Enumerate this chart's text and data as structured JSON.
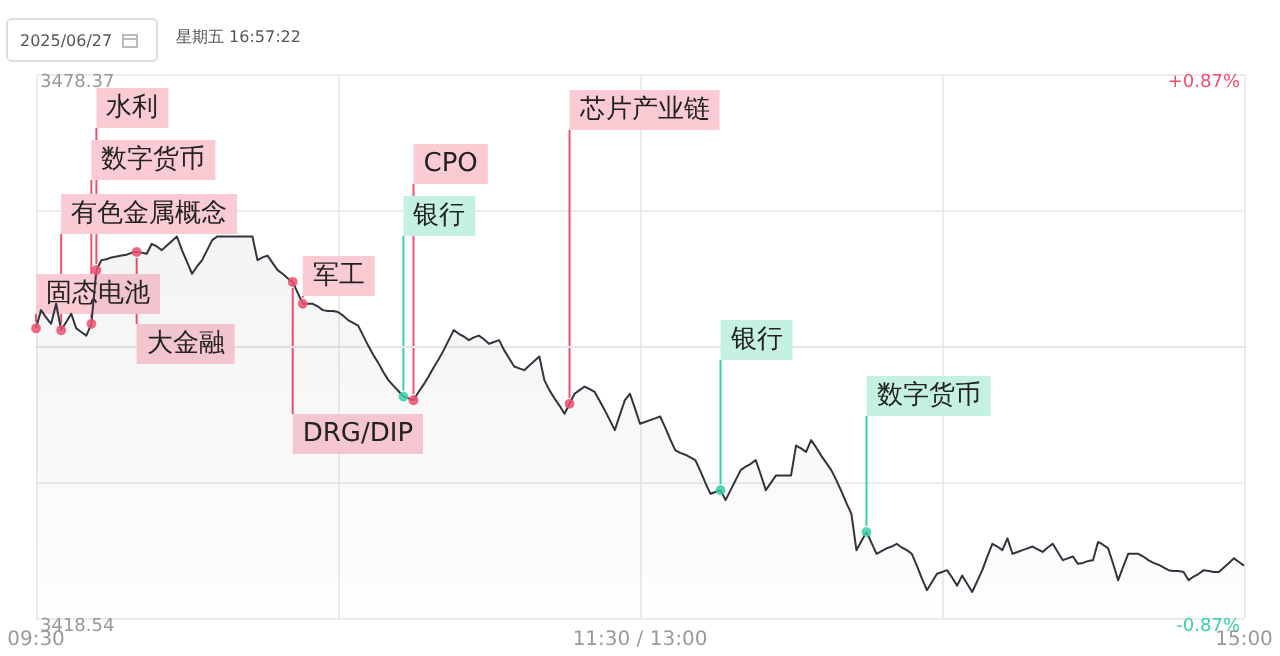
{
  "chart_data": {
    "type": "area",
    "annotations": [
      "2025/06/27",
      "星期五 16:57:22"
    ],
    "categories": [
      "09:30",
      null,
      null,
      null,
      null,
      null,
      null,
      null,
      null,
      null,
      null,
      null,
      null,
      null,
      null,
      null,
      null,
      null,
      null,
      null,
      null,
      null,
      null,
      null,
      null,
      null,
      null,
      null,
      null,
      null,
      null,
      null,
      null,
      null,
      null,
      null,
      null,
      null,
      null,
      null,
      null,
      null,
      null,
      null,
      null,
      null,
      null,
      null,
      null,
      null,
      null,
      null,
      null,
      null,
      null,
      null,
      null,
      null,
      null,
      null,
      null,
      null,
      null,
      null,
      null,
      null,
      null,
      null,
      null,
      null,
      null,
      null,
      null,
      null,
      null,
      null,
      null,
      null,
      null,
      null,
      null,
      null,
      null,
      null,
      null,
      null,
      null,
      null,
      null,
      null,
      null,
      null,
      null,
      null,
      null,
      null,
      null,
      null,
      null,
      null,
      null,
      null,
      null,
      null,
      null,
      null,
      null,
      null,
      null,
      null,
      null,
      null,
      null,
      null,
      null,
      null,
      null,
      null,
      null,
      null,
      "11:30 / 13:00",
      null,
      null,
      null,
      null,
      null,
      null,
      null,
      null,
      null,
      null,
      null,
      null,
      null,
      null,
      null,
      null,
      null,
      null,
      null,
      null,
      null,
      null,
      null,
      null,
      null,
      null,
      null,
      null,
      null,
      null,
      null,
      null,
      null,
      null,
      null,
      null,
      null,
      null,
      null,
      null,
      null,
      null,
      null,
      null,
      null,
      null,
      null,
      null,
      null,
      null,
      null,
      null,
      null,
      null,
      null,
      null,
      null,
      null,
      null,
      null,
      null,
      null,
      null,
      null,
      null,
      null,
      null,
      null,
      null,
      null,
      null,
      null,
      null,
      null,
      null,
      null,
      null,
      null,
      null,
      null,
      null,
      null,
      null,
      null,
      null,
      null,
      null,
      null,
      null,
      null,
      null,
      null,
      null,
      null,
      null,
      null,
      null,
      null,
      null,
      null,
      null,
      null,
      null,
      null,
      null,
      null,
      null,
      null,
      null,
      null,
      null,
      null,
      null,
      null,
      null,
      null,
      null,
      null,
      null,
      "15:00"
    ],
    "ylim": [
      3418.54,
      3478.37
    ],
    "yticks": [
      {
        "value": 3418.54,
        "label": "3418.54"
      },
      {
        "value": 3433.5,
        "label": null
      },
      {
        "value": 3448.455,
        "label": null
      },
      {
        "value": 3463.41,
        "label": null
      },
      {
        "value": 3478.37,
        "label": "3478.37"
      }
    ],
    "y2lim": [
      -0.87,
      0.87
    ],
    "y2ticks": [
      {
        "value": -0.87,
        "label": "-0.87%"
      },
      {
        "value": 0.87,
        "label": "+0.87%"
      }
    ],
    "grid": true,
    "marker": "none",
    "series": [
      {
        "color": "#33333d",
        "values": [
          3450.4,
          3452.4,
          3451.6,
          3450.9,
          3453.1,
          3450.2,
          3451.1,
          3452.0,
          3450.4,
          3450.0,
          3449.6,
          3450.9,
          3456.8,
          3457.9,
          3458.0,
          3458.2,
          3458.3,
          3458.4,
          3458.5,
          3458.7,
          3458.8,
          3458.7,
          3458.6,
          3459.7,
          3459.4,
          3459.0,
          3459.5,
          3460.0,
          3460.5,
          3459.0,
          3457.7,
          3456.4,
          3457.2,
          3457.9,
          3459.0,
          3460.1,
          3460.5,
          3460.5,
          3460.5,
          3460.5,
          3460.5,
          3460.5,
          3460.5,
          3460.5,
          3457.9,
          3458.2,
          3458.4,
          3457.6,
          3456.8,
          3456.4,
          3455.9,
          3455.5,
          3454.3,
          3453.1,
          3453.1,
          3453.1,
          3452.8,
          3452.4,
          3452.3,
          3452.3,
          3452.2,
          3451.8,
          3451.3,
          3451.0,
          3450.7,
          3449.6,
          3448.5,
          3447.5,
          3446.6,
          3445.6,
          3444.7,
          3444.1,
          3443.5,
          3442.9,
          3442.7,
          3442.5,
          3443.4,
          3444.2,
          3445.1,
          3446.1,
          3447.0,
          3448.0,
          3449.1,
          3450.2,
          3449.8,
          3449.5,
          3449.1,
          3449.4,
          3449.6,
          3449.2,
          3448.7,
          3448.9,
          3449.1,
          3448.0,
          3447.1,
          3446.2,
          3446.0,
          3445.8,
          3446.3,
          3446.8,
          3447.3,
          3444.7,
          3443.6,
          3442.7,
          3441.9,
          3441.0,
          3442.1,
          3443.2,
          3443.6,
          3444.0,
          3443.7,
          3443.4,
          3442.4,
          3441.4,
          3440.3,
          3439.2,
          3440.9,
          3442.5,
          3443.2,
          3441.6,
          3439.9,
          3440.1,
          3440.3,
          3440.5,
          3440.7,
          3439.5,
          3438.2,
          3437.0,
          3436.7,
          3436.5,
          3436.2,
          3435.9,
          3434.7,
          3433.4,
          3432.2,
          3432.4,
          3432.6,
          3431.5,
          3432.6,
          3433.7,
          3434.8,
          3435.2,
          3435.5,
          3435.9,
          3434.3,
          3432.6,
          3433.4,
          3434.2,
          3434.2,
          3434.2,
          3434.2,
          3437.5,
          3437.2,
          3436.8,
          3438.1,
          3437.3,
          3436.4,
          3435.6,
          3434.8,
          3433.7,
          3432.5,
          3431.2,
          3430.0,
          3426.0,
          3427.0,
          3428.0,
          3426.8,
          3425.6,
          3425.9,
          3426.2,
          3426.4,
          3426.7,
          3426.3,
          3426.0,
          3425.6,
          3424.3,
          3422.9,
          3421.6,
          3422.5,
          3423.4,
          3423.6,
          3423.8,
          3423.0,
          3422.1,
          3423.2,
          3422.3,
          3421.4,
          3422.6,
          3423.8,
          3425.3,
          3426.7,
          3426.4,
          3426.0,
          3427.3,
          3425.6,
          3425.8,
          3426.0,
          3426.2,
          3426.4,
          3426.1,
          3425.8,
          3426.3,
          3426.7,
          3425.8,
          3424.9,
          3425.1,
          3425.3,
          3424.5,
          3424.6,
          3424.8,
          3424.9,
          3426.9,
          3426.6,
          3426.2,
          3424.5,
          3422.7,
          3424.2,
          3425.6,
          3425.6,
          3425.6,
          3425.3,
          3424.9,
          3424.6,
          3424.4,
          3424.1,
          3423.8,
          3423.7,
          3423.7,
          3423.6,
          3422.7,
          3423.1,
          3423.4,
          3423.8,
          3423.7,
          3423.6,
          3423.6,
          3424.1,
          3424.6,
          3425.1,
          3424.7,
          3424.3
        ]
      },
      {
        "type": "scatter",
        "marker": "circle",
        "color": "#f0506e",
        "values": [
          3450.4,
          null,
          null,
          null,
          null,
          3450.2,
          null,
          null,
          null,
          null,
          null,
          3450.9,
          3456.8,
          null,
          null,
          null,
          null,
          null,
          null,
          null,
          3458.8,
          null,
          null,
          null,
          null,
          null,
          null,
          null,
          null,
          null,
          null,
          null,
          null,
          null,
          null,
          null,
          null,
          null,
          null,
          null,
          null,
          null,
          null,
          null,
          null,
          null,
          null,
          null,
          null,
          null,
          null,
          3455.5,
          null,
          3453.1,
          null,
          null,
          null,
          null,
          null,
          null,
          null,
          null,
          null,
          null,
          null,
          null,
          null,
          null,
          null,
          null,
          null,
          null,
          null,
          null,
          null,
          3442.5,
          null,
          null,
          null,
          null,
          null,
          null,
          null,
          null,
          null,
          null,
          null,
          null,
          null,
          null,
          null,
          null,
          null,
          null,
          null,
          null,
          null,
          null,
          null,
          null,
          null,
          null,
          null,
          null,
          null,
          null,
          3442.1,
          null,
          null,
          null,
          null,
          null,
          null,
          null,
          null,
          null,
          null,
          null,
          null,
          null,
          null,
          null,
          null,
          null,
          null,
          null,
          null,
          null,
          null,
          null,
          null,
          null,
          null,
          null,
          null,
          null,
          null,
          null,
          null,
          null,
          null,
          null,
          null,
          null,
          null,
          null,
          null,
          null,
          null,
          null,
          null,
          null,
          null,
          null,
          null,
          null,
          null,
          null,
          null,
          null,
          null,
          null,
          null,
          null,
          null,
          null,
          null,
          null,
          null,
          null,
          null,
          null,
          null,
          null,
          null,
          null,
          null,
          null,
          null,
          null,
          null,
          null,
          null,
          null,
          null,
          null,
          null,
          null,
          null,
          null,
          null,
          null,
          null,
          null,
          null,
          null,
          null,
          null,
          null,
          null,
          null,
          null,
          null,
          null,
          null,
          null,
          null,
          null,
          null,
          null,
          null,
          null,
          null,
          null,
          null,
          null,
          null,
          null,
          null,
          null,
          null,
          null,
          null,
          null,
          null,
          null,
          null,
          null,
          null,
          null,
          null,
          null,
          null,
          null,
          null,
          null,
          null,
          null,
          null,
          null,
          null
        ],
        "value_labels": [
          "固态电池",
          null,
          null,
          null,
          null,
          "有色金属概念",
          null,
          null,
          null,
          null,
          null,
          "数字货币",
          "水利",
          null,
          null,
          null,
          null,
          null,
          null,
          null,
          "大金融",
          null,
          null,
          null,
          null,
          null,
          null,
          null,
          null,
          null,
          null,
          null,
          null,
          null,
          null,
          null,
          null,
          null,
          null,
          null,
          null,
          null,
          null,
          null,
          null,
          null,
          null,
          null,
          null,
          null,
          null,
          "DRG/DIP",
          null,
          "军工",
          null,
          null,
          null,
          null,
          null,
          null,
          null,
          null,
          null,
          null,
          null,
          null,
          null,
          null,
          null,
          null,
          null,
          null,
          null,
          null,
          null,
          "CPO",
          null,
          null,
          null,
          null,
          null,
          null,
          null,
          null,
          null,
          null,
          null,
          null,
          null,
          null,
          null,
          null,
          null,
          null,
          null,
          null,
          null,
          null,
          null,
          null,
          null,
          null,
          null,
          null,
          null,
          null,
          "芯片产业链",
          null,
          null,
          null,
          null,
          null,
          null,
          null,
          null,
          null,
          null,
          null,
          null,
          null,
          null,
          null,
          null,
          null,
          null,
          null,
          null,
          null,
          null,
          null,
          null,
          null,
          null,
          null,
          null,
          null,
          null,
          null,
          null,
          null,
          null,
          null,
          null,
          null,
          null,
          null,
          null,
          null,
          null,
          null,
          null,
          null,
          null,
          null,
          null,
          null,
          null,
          null,
          null,
          null,
          null,
          null,
          null,
          null,
          null,
          null,
          null,
          null,
          null,
          null,
          null,
          null,
          null,
          null,
          null,
          null,
          null,
          null,
          null,
          null,
          null,
          null,
          null,
          null,
          null,
          null,
          null,
          null,
          null,
          null,
          null,
          null,
          null,
          null,
          null,
          null,
          null,
          null,
          null,
          null,
          null,
          null,
          null,
          null,
          null,
          null,
          null,
          null,
          null,
          null,
          null,
          null,
          null,
          null,
          null,
          null,
          null,
          null,
          null,
          null,
          null,
          null,
          null,
          null,
          null,
          null,
          null,
          null,
          null,
          null,
          null,
          null,
          null,
          null,
          null,
          null,
          null,
          null,
          null,
          null,
          null
        ]
      },
      {
        "type": "scatter",
        "marker": "circle",
        "color": "#3ccfa8",
        "values": [
          null,
          null,
          null,
          null,
          null,
          null,
          null,
          null,
          null,
          null,
          null,
          null,
          null,
          null,
          null,
          null,
          null,
          null,
          null,
          null,
          null,
          null,
          null,
          null,
          null,
          null,
          null,
          null,
          null,
          null,
          null,
          null,
          null,
          null,
          null,
          null,
          null,
          null,
          null,
          null,
          null,
          null,
          null,
          null,
          null,
          null,
          null,
          null,
          null,
          null,
          null,
          null,
          null,
          null,
          null,
          null,
          null,
          null,
          null,
          null,
          null,
          null,
          null,
          null,
          null,
          null,
          null,
          null,
          null,
          null,
          null,
          null,
          null,
          3442.9,
          null,
          null,
          null,
          null,
          null,
          null,
          null,
          null,
          null,
          null,
          null,
          null,
          null,
          null,
          null,
          null,
          null,
          null,
          null,
          null,
          null,
          null,
          null,
          null,
          null,
          null,
          null,
          null,
          null,
          null,
          null,
          null,
          null,
          null,
          null,
          null,
          null,
          null,
          null,
          null,
          null,
          null,
          null,
          null,
          null,
          null,
          null,
          null,
          null,
          null,
          null,
          null,
          null,
          null,
          null,
          null,
          null,
          null,
          null,
          null,
          null,
          null,
          3432.6,
          null,
          null,
          null,
          null,
          null,
          null,
          null,
          null,
          null,
          null,
          null,
          null,
          null,
          null,
          null,
          null,
          null,
          null,
          null,
          null,
          null,
          null,
          null,
          null,
          null,
          null,
          null,
          null,
          3428.0,
          null,
          null,
          null,
          null,
          null,
          null,
          null,
          null,
          null,
          null,
          null,
          null,
          null,
          null,
          null,
          null,
          null,
          null,
          null,
          null,
          null,
          null,
          null,
          null,
          null,
          null,
          null,
          null,
          null,
          null,
          null,
          null,
          null,
          null,
          null,
          null,
          null,
          null,
          null,
          null,
          null,
          null,
          null,
          null,
          null,
          null,
          null,
          null,
          null,
          null,
          null,
          null,
          null,
          null,
          null,
          null,
          null,
          null,
          null,
          null,
          null,
          null,
          null,
          null,
          null,
          null,
          null,
          null,
          null,
          null,
          null,
          null,
          null,
          null,
          null
        ],
        "value_labels": [
          null,
          null,
          null,
          null,
          null,
          null,
          null,
          null,
          null,
          null,
          null,
          null,
          null,
          null,
          null,
          null,
          null,
          null,
          null,
          null,
          null,
          null,
          null,
          null,
          null,
          null,
          null,
          null,
          null,
          null,
          null,
          null,
          null,
          null,
          null,
          null,
          null,
          null,
          null,
          null,
          null,
          null,
          null,
          null,
          null,
          null,
          null,
          null,
          null,
          null,
          null,
          null,
          null,
          null,
          null,
          null,
          null,
          null,
          null,
          null,
          null,
          null,
          null,
          null,
          null,
          null,
          null,
          null,
          null,
          null,
          null,
          null,
          null,
          "银行",
          null,
          null,
          null,
          null,
          null,
          null,
          null,
          null,
          null,
          null,
          null,
          null,
          null,
          null,
          null,
          null,
          null,
          null,
          null,
          null,
          null,
          null,
          null,
          null,
          null,
          null,
          null,
          null,
          null,
          null,
          null,
          null,
          null,
          null,
          null,
          null,
          null,
          null,
          null,
          null,
          null,
          null,
          null,
          null,
          null,
          null,
          null,
          null,
          null,
          null,
          null,
          null,
          null,
          null,
          null,
          null,
          null,
          null,
          null,
          null,
          null,
          null,
          "银行",
          null,
          null,
          null,
          null,
          null,
          null,
          null,
          null,
          null,
          null,
          null,
          null,
          null,
          null,
          null,
          null,
          null,
          null,
          null,
          null,
          null,
          null,
          null,
          null,
          null,
          null,
          null,
          null,
          "数字货币",
          null,
          null,
          null,
          null,
          null,
          null,
          null,
          null,
          null,
          null,
          null,
          null,
          null,
          null,
          null,
          null,
          null,
          null,
          null,
          null,
          null,
          null,
          null,
          null,
          null,
          null,
          null,
          null,
          null,
          null,
          null,
          null,
          null,
          null,
          null,
          null,
          null,
          null,
          null,
          null,
          null,
          null,
          null,
          null,
          null,
          null,
          null,
          null,
          null,
          null,
          null,
          null,
          null,
          null,
          null,
          null,
          null,
          null,
          null,
          null,
          null,
          null,
          null,
          null,
          null,
          null,
          null,
          null,
          null,
          null,
          null,
          null,
          null,
          null,
          null
        ]
      }
    ]
  }
}
